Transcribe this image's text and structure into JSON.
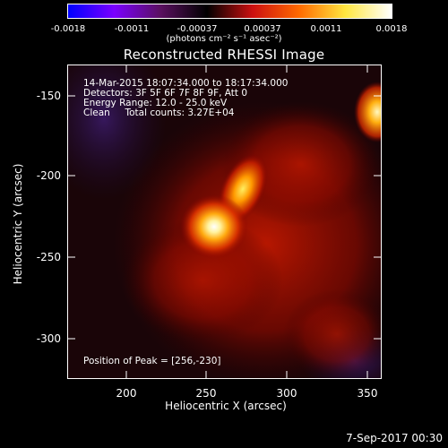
{
  "colorbar": {
    "ticks": [
      "-0.0018",
      "-0.0011",
      "-0.00037",
      "0.00037",
      "0.0011",
      "0.0018"
    ],
    "units": "(photons cm⁻² s⁻¹ asec⁻²)",
    "colormap": [
      "#0000ff",
      "#7a00ff",
      "#5a1060",
      "#000000",
      "#cc1010",
      "#ff6a00",
      "#ffe640",
      "#ffffff"
    ]
  },
  "title": "Reconstructed RHESSI Image",
  "info": {
    "time": "14-Mar-2015 18:07:34.000 to 18:17:34.000",
    "detectors": "Detectors: 3F 5F 6F 7F 8F 9F, Att 0",
    "energy": "Energy Range: 12.0 - 25.0 keV",
    "clean": "Clean     Total counts: 3.27E+04"
  },
  "peak": "Position of Peak = [256,-230]",
  "axes": {
    "xlabel": "Heliocentric X (arcsec)",
    "ylabel": "Heliocentric Y (arcsec)",
    "xticks": [
      "200",
      "250",
      "300",
      "350"
    ],
    "yticks": [
      "-150",
      "-200",
      "-250",
      "-300"
    ],
    "xlim": [
      165,
      360
    ],
    "ylim": [
      -325,
      -130
    ]
  },
  "footer": "7-Sep-2017 00:30"
}
